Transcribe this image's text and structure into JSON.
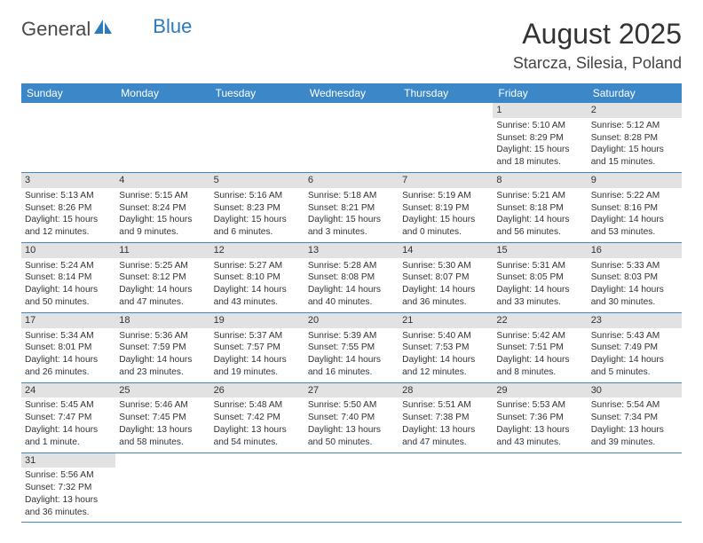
{
  "logo": {
    "general": "General",
    "blue": "Blue"
  },
  "title": "August 2025",
  "location": "Starcza, Silesia, Poland",
  "colors": {
    "header_bg": "#3b87c8",
    "header_text": "#ffffff",
    "daynum_bg": "#e2e2e2",
    "rule": "#3b87c8",
    "logo_gray": "#4a4a4a",
    "logo_blue": "#2b7bbd"
  },
  "weekdays": [
    "Sunday",
    "Monday",
    "Tuesday",
    "Wednesday",
    "Thursday",
    "Friday",
    "Saturday"
  ],
  "weeks": [
    [
      null,
      null,
      null,
      null,
      null,
      {
        "n": "1",
        "sr": "Sunrise: 5:10 AM",
        "ss": "Sunset: 8:29 PM",
        "dl1": "Daylight: 15 hours",
        "dl2": "and 18 minutes."
      },
      {
        "n": "2",
        "sr": "Sunrise: 5:12 AM",
        "ss": "Sunset: 8:28 PM",
        "dl1": "Daylight: 15 hours",
        "dl2": "and 15 minutes."
      }
    ],
    [
      {
        "n": "3",
        "sr": "Sunrise: 5:13 AM",
        "ss": "Sunset: 8:26 PM",
        "dl1": "Daylight: 15 hours",
        "dl2": "and 12 minutes."
      },
      {
        "n": "4",
        "sr": "Sunrise: 5:15 AM",
        "ss": "Sunset: 8:24 PM",
        "dl1": "Daylight: 15 hours",
        "dl2": "and 9 minutes."
      },
      {
        "n": "5",
        "sr": "Sunrise: 5:16 AM",
        "ss": "Sunset: 8:23 PM",
        "dl1": "Daylight: 15 hours",
        "dl2": "and 6 minutes."
      },
      {
        "n": "6",
        "sr": "Sunrise: 5:18 AM",
        "ss": "Sunset: 8:21 PM",
        "dl1": "Daylight: 15 hours",
        "dl2": "and 3 minutes."
      },
      {
        "n": "7",
        "sr": "Sunrise: 5:19 AM",
        "ss": "Sunset: 8:19 PM",
        "dl1": "Daylight: 15 hours",
        "dl2": "and 0 minutes."
      },
      {
        "n": "8",
        "sr": "Sunrise: 5:21 AM",
        "ss": "Sunset: 8:18 PM",
        "dl1": "Daylight: 14 hours",
        "dl2": "and 56 minutes."
      },
      {
        "n": "9",
        "sr": "Sunrise: 5:22 AM",
        "ss": "Sunset: 8:16 PM",
        "dl1": "Daylight: 14 hours",
        "dl2": "and 53 minutes."
      }
    ],
    [
      {
        "n": "10",
        "sr": "Sunrise: 5:24 AM",
        "ss": "Sunset: 8:14 PM",
        "dl1": "Daylight: 14 hours",
        "dl2": "and 50 minutes."
      },
      {
        "n": "11",
        "sr": "Sunrise: 5:25 AM",
        "ss": "Sunset: 8:12 PM",
        "dl1": "Daylight: 14 hours",
        "dl2": "and 47 minutes."
      },
      {
        "n": "12",
        "sr": "Sunrise: 5:27 AM",
        "ss": "Sunset: 8:10 PM",
        "dl1": "Daylight: 14 hours",
        "dl2": "and 43 minutes."
      },
      {
        "n": "13",
        "sr": "Sunrise: 5:28 AM",
        "ss": "Sunset: 8:08 PM",
        "dl1": "Daylight: 14 hours",
        "dl2": "and 40 minutes."
      },
      {
        "n": "14",
        "sr": "Sunrise: 5:30 AM",
        "ss": "Sunset: 8:07 PM",
        "dl1": "Daylight: 14 hours",
        "dl2": "and 36 minutes."
      },
      {
        "n": "15",
        "sr": "Sunrise: 5:31 AM",
        "ss": "Sunset: 8:05 PM",
        "dl1": "Daylight: 14 hours",
        "dl2": "and 33 minutes."
      },
      {
        "n": "16",
        "sr": "Sunrise: 5:33 AM",
        "ss": "Sunset: 8:03 PM",
        "dl1": "Daylight: 14 hours",
        "dl2": "and 30 minutes."
      }
    ],
    [
      {
        "n": "17",
        "sr": "Sunrise: 5:34 AM",
        "ss": "Sunset: 8:01 PM",
        "dl1": "Daylight: 14 hours",
        "dl2": "and 26 minutes."
      },
      {
        "n": "18",
        "sr": "Sunrise: 5:36 AM",
        "ss": "Sunset: 7:59 PM",
        "dl1": "Daylight: 14 hours",
        "dl2": "and 23 minutes."
      },
      {
        "n": "19",
        "sr": "Sunrise: 5:37 AM",
        "ss": "Sunset: 7:57 PM",
        "dl1": "Daylight: 14 hours",
        "dl2": "and 19 minutes."
      },
      {
        "n": "20",
        "sr": "Sunrise: 5:39 AM",
        "ss": "Sunset: 7:55 PM",
        "dl1": "Daylight: 14 hours",
        "dl2": "and 16 minutes."
      },
      {
        "n": "21",
        "sr": "Sunrise: 5:40 AM",
        "ss": "Sunset: 7:53 PM",
        "dl1": "Daylight: 14 hours",
        "dl2": "and 12 minutes."
      },
      {
        "n": "22",
        "sr": "Sunrise: 5:42 AM",
        "ss": "Sunset: 7:51 PM",
        "dl1": "Daylight: 14 hours",
        "dl2": "and 8 minutes."
      },
      {
        "n": "23",
        "sr": "Sunrise: 5:43 AM",
        "ss": "Sunset: 7:49 PM",
        "dl1": "Daylight: 14 hours",
        "dl2": "and 5 minutes."
      }
    ],
    [
      {
        "n": "24",
        "sr": "Sunrise: 5:45 AM",
        "ss": "Sunset: 7:47 PM",
        "dl1": "Daylight: 14 hours",
        "dl2": "and 1 minute."
      },
      {
        "n": "25",
        "sr": "Sunrise: 5:46 AM",
        "ss": "Sunset: 7:45 PM",
        "dl1": "Daylight: 13 hours",
        "dl2": "and 58 minutes."
      },
      {
        "n": "26",
        "sr": "Sunrise: 5:48 AM",
        "ss": "Sunset: 7:42 PM",
        "dl1": "Daylight: 13 hours",
        "dl2": "and 54 minutes."
      },
      {
        "n": "27",
        "sr": "Sunrise: 5:50 AM",
        "ss": "Sunset: 7:40 PM",
        "dl1": "Daylight: 13 hours",
        "dl2": "and 50 minutes."
      },
      {
        "n": "28",
        "sr": "Sunrise: 5:51 AM",
        "ss": "Sunset: 7:38 PM",
        "dl1": "Daylight: 13 hours",
        "dl2": "and 47 minutes."
      },
      {
        "n": "29",
        "sr": "Sunrise: 5:53 AM",
        "ss": "Sunset: 7:36 PM",
        "dl1": "Daylight: 13 hours",
        "dl2": "and 43 minutes."
      },
      {
        "n": "30",
        "sr": "Sunrise: 5:54 AM",
        "ss": "Sunset: 7:34 PM",
        "dl1": "Daylight: 13 hours",
        "dl2": "and 39 minutes."
      }
    ],
    [
      {
        "n": "31",
        "sr": "Sunrise: 5:56 AM",
        "ss": "Sunset: 7:32 PM",
        "dl1": "Daylight: 13 hours",
        "dl2": "and 36 minutes."
      },
      null,
      null,
      null,
      null,
      null,
      null
    ]
  ]
}
